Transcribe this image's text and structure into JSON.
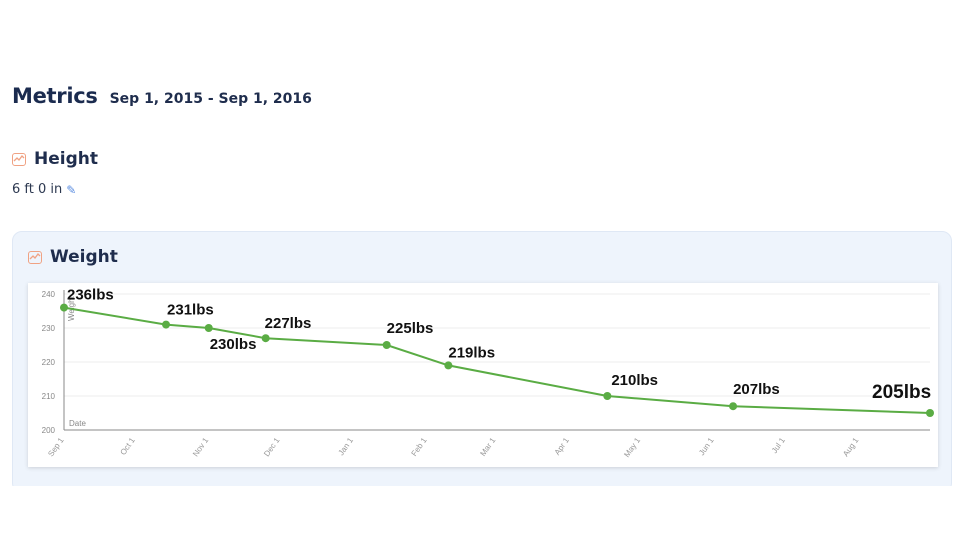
{
  "page": {
    "title": "Metrics",
    "date_range": "Sep 1, 2015 - Sep 1, 2016"
  },
  "height": {
    "title": "Height",
    "value": "6 ft 0 in",
    "icon": "chart-icon",
    "edit_icon": "pencil-icon"
  },
  "weight": {
    "title": "Weight",
    "icon": "chart-icon"
  },
  "colors": {
    "line": "#5aac44",
    "icon": "#f0a283",
    "card_bg": "#eef4fc"
  },
  "chart_data": {
    "type": "line",
    "xlabel": "Date",
    "ylabel": "Weight",
    "ylim": [
      200,
      240
    ],
    "yticks": [
      200,
      210,
      220,
      230,
      240
    ],
    "x_tick_labels": [
      "Sep 1",
      "Oct 1",
      "Nov 1",
      "Dec 1",
      "Jan 1",
      "Feb 1",
      "Mar 1",
      "Apr 1",
      "May 1",
      "Jun 1",
      "Jul 1",
      "Aug 1"
    ],
    "grid": true,
    "series": [
      {
        "points": [
          {
            "x": "2015-09-01",
            "y": 236,
            "label": "236lbs"
          },
          {
            "x": "2015-10-14",
            "y": 231,
            "label": "231lbs"
          },
          {
            "x": "2015-11-01",
            "y": 230,
            "label": "230lbs"
          },
          {
            "x": "2015-11-25",
            "y": 227,
            "label": "227lbs"
          },
          {
            "x": "2016-01-15",
            "y": 225,
            "label": "225lbs"
          },
          {
            "x": "2016-02-10",
            "y": 219,
            "label": "219lbs"
          },
          {
            "x": "2016-04-17",
            "y": 210,
            "label": "210lbs"
          },
          {
            "x": "2016-06-09",
            "y": 207,
            "label": "207lbs"
          },
          {
            "x": "2016-08-31",
            "y": 205,
            "label": "205lbs"
          }
        ]
      }
    ]
  }
}
